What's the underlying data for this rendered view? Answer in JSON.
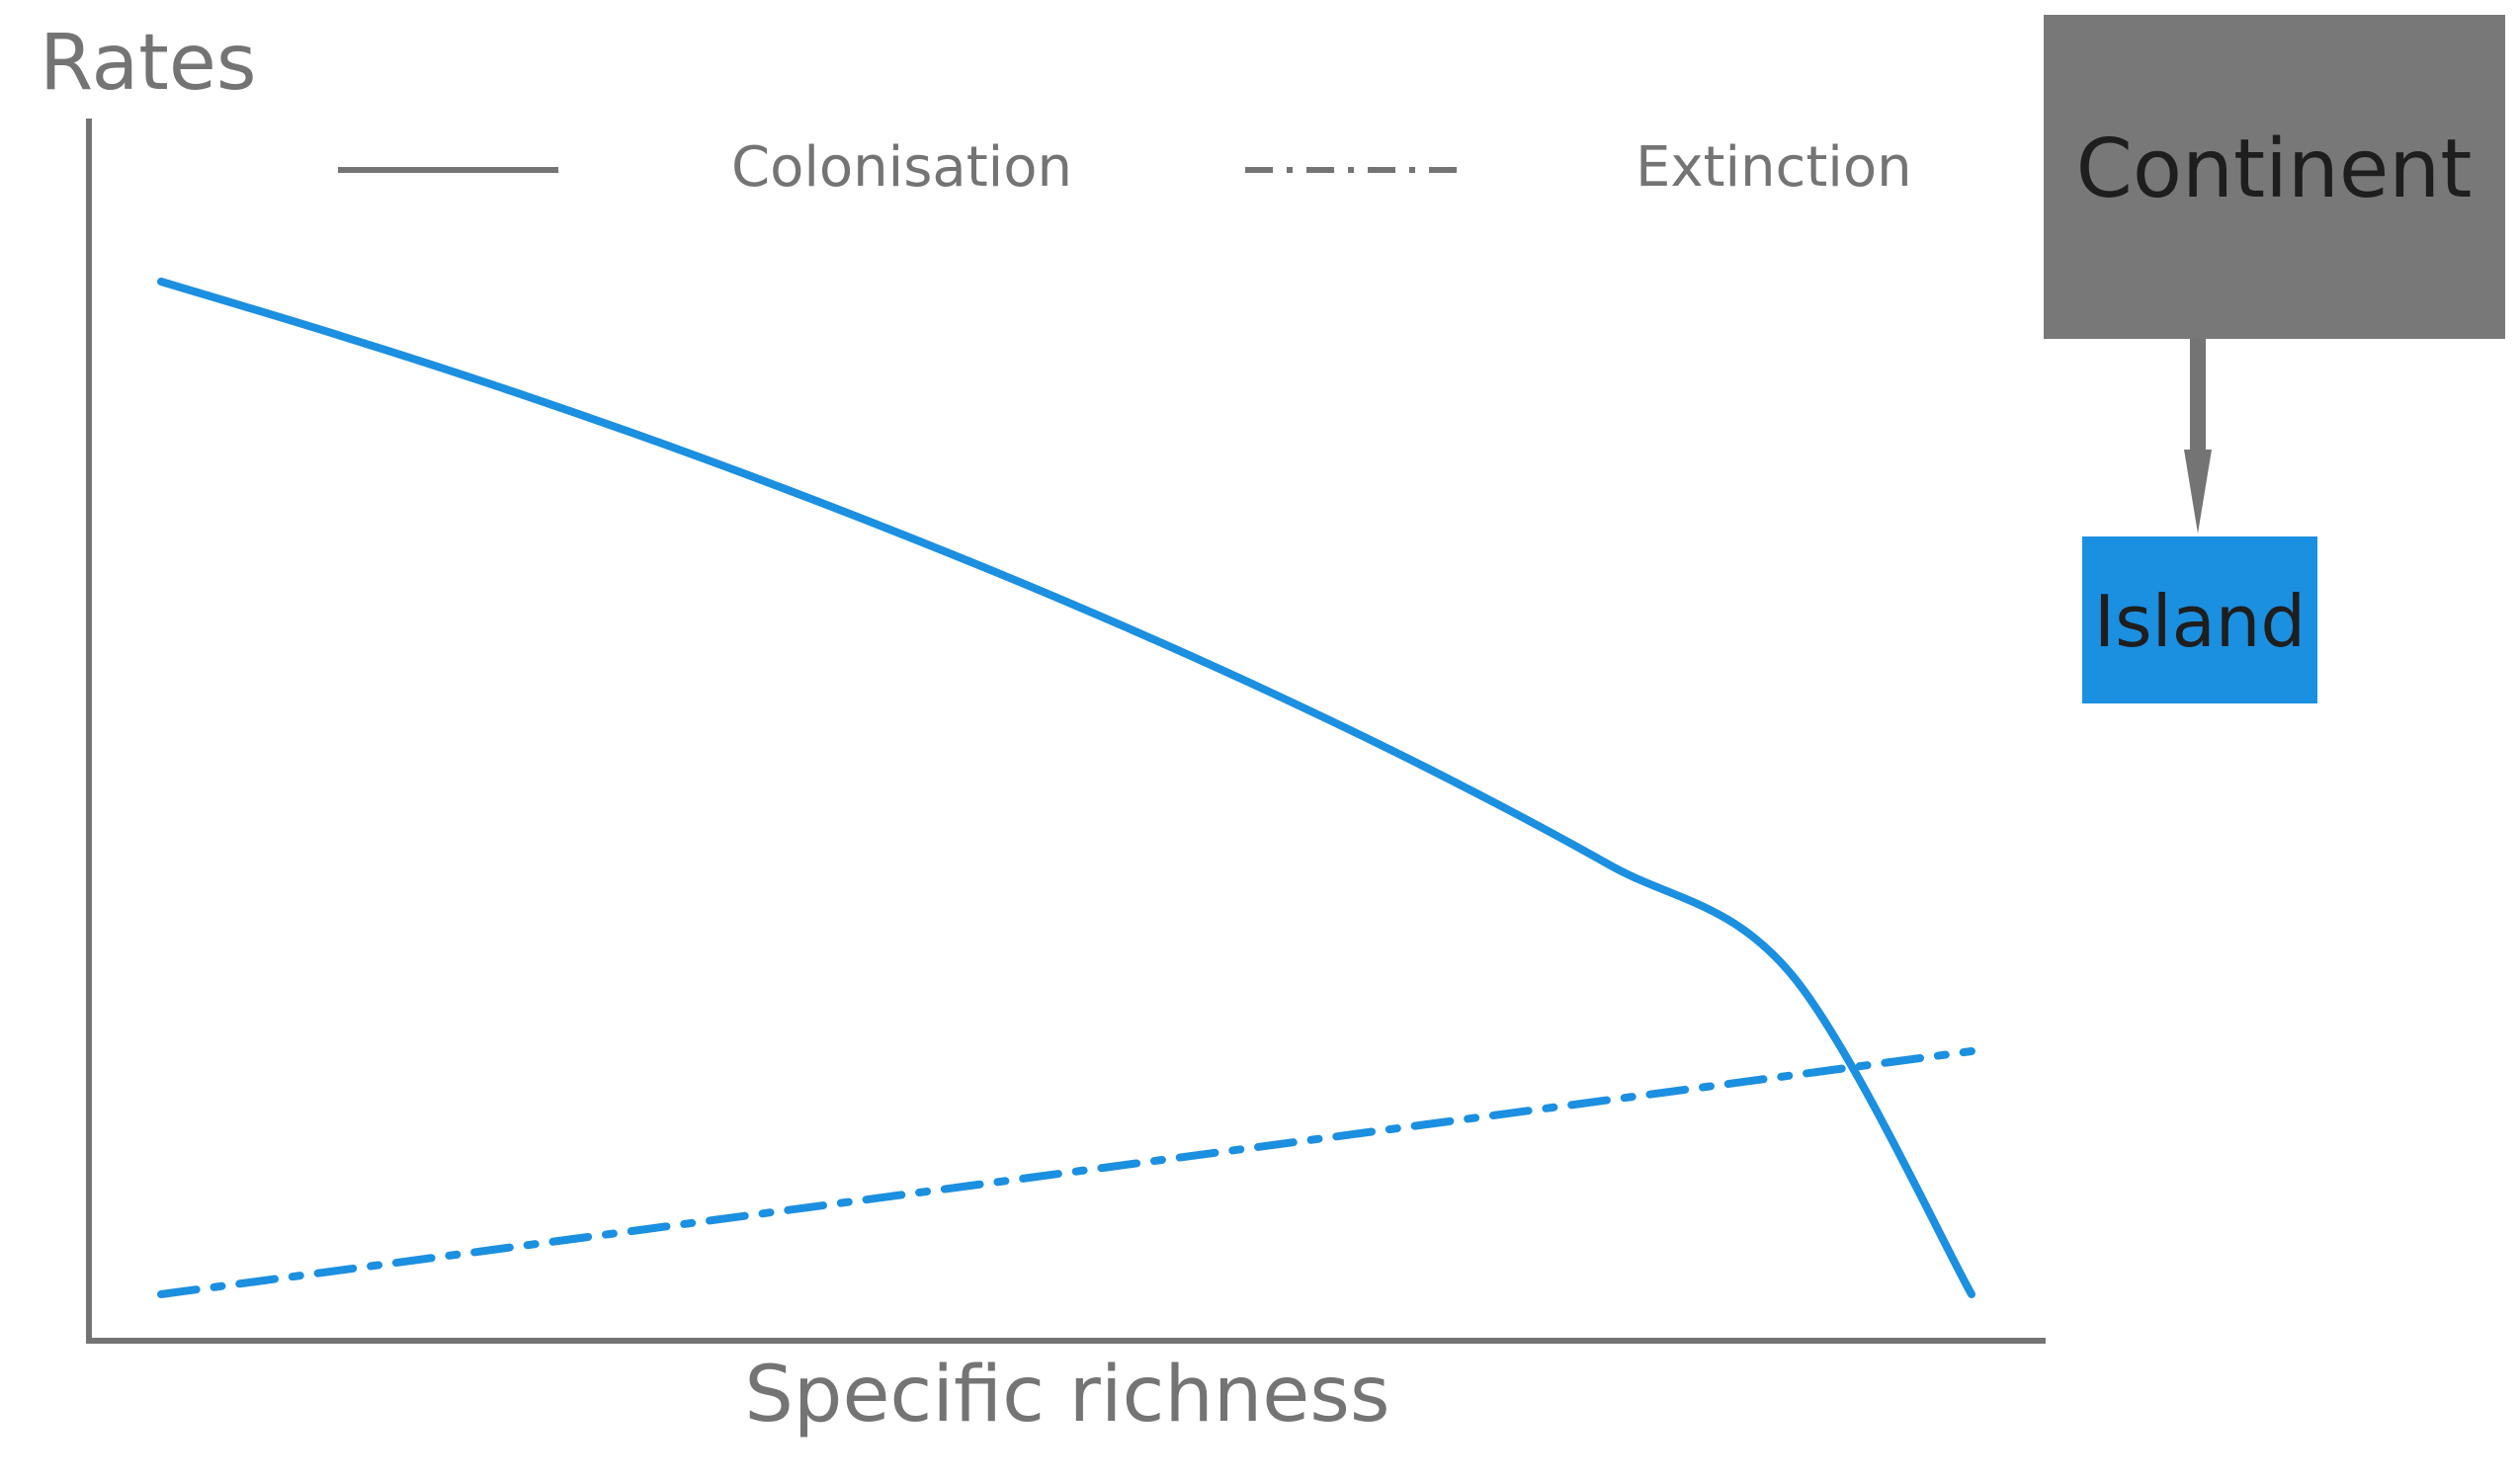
{
  "chart_data": {
    "type": "line",
    "ylabel": "Rates",
    "xlabel": "Specific richness",
    "legend_position": "top",
    "series": [
      {
        "name": "Colonisation",
        "style": "solid",
        "x": [
          0,
          0.1,
          0.2,
          0.3,
          0.4,
          0.5,
          0.6,
          0.7,
          0.8,
          0.9,
          1.0
        ],
        "y": [
          1.0,
          0.946,
          0.888,
          0.825,
          0.757,
          0.684,
          0.605,
          0.519,
          0.424,
          0.317,
          0.0
        ]
      },
      {
        "name": "Extinction",
        "style": "dash-dot",
        "x": [
          0,
          1.0
        ],
        "y": [
          0.0,
          0.24
        ]
      }
    ]
  },
  "diagram": {
    "source": "Continent",
    "target": "Island"
  },
  "colors": {
    "curve": "#1b8fe0",
    "axis": "#747474",
    "text": "#747474",
    "continent_fill": "#787878",
    "island_fill": "#1b8fe0",
    "box_text": "#1e1e1e"
  }
}
